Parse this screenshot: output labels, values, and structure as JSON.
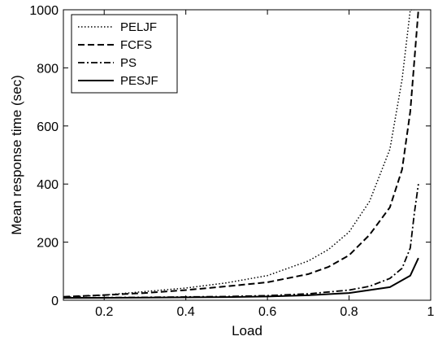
{
  "chart_data": {
    "type": "line",
    "xlabel": "Load",
    "ylabel": "Mean response time (sec)",
    "xlim": [
      0.1,
      1.0
    ],
    "ylim": [
      0,
      1000
    ],
    "xticks": [
      0.2,
      0.4,
      0.6,
      0.8,
      1
    ],
    "xtick_labels": [
      "0.2",
      "0.4",
      "0.6",
      "0.8",
      "1"
    ],
    "yticks": [
      0,
      200,
      400,
      600,
      800,
      1000
    ],
    "ytick_labels": [
      "0",
      "200",
      "400",
      "600",
      "800",
      "1000"
    ],
    "grid": false,
    "legend_position": "top-left",
    "series": [
      {
        "name": "PELJF",
        "style": "dotted",
        "x": [
          0.1,
          0.2,
          0.3,
          0.4,
          0.5,
          0.6,
          0.7,
          0.75,
          0.8,
          0.85,
          0.9,
          0.93,
          0.95,
          0.96
        ],
        "y": [
          10,
          18,
          30,
          42,
          60,
          85,
          135,
          175,
          235,
          340,
          520,
          760,
          1000,
          1000
        ]
      },
      {
        "name": "FCFS",
        "style": "dashed",
        "x": [
          0.1,
          0.2,
          0.3,
          0.4,
          0.5,
          0.6,
          0.7,
          0.75,
          0.8,
          0.85,
          0.9,
          0.93,
          0.95,
          0.97
        ],
        "y": [
          12,
          18,
          25,
          35,
          48,
          62,
          90,
          115,
          155,
          225,
          320,
          450,
          650,
          1000
        ]
      },
      {
        "name": "PS",
        "style": "dashdot",
        "x": [
          0.1,
          0.3,
          0.5,
          0.6,
          0.7,
          0.8,
          0.85,
          0.9,
          0.93,
          0.95,
          0.96,
          0.97
        ],
        "y": [
          8,
          10,
          13,
          16,
          22,
          35,
          48,
          75,
          110,
          180,
          300,
          400
        ]
      },
      {
        "name": "PESJF",
        "style": "solid",
        "x": [
          0.1,
          0.3,
          0.5,
          0.6,
          0.7,
          0.8,
          0.85,
          0.9,
          0.95,
          0.97
        ],
        "y": [
          8,
          9,
          11,
          13,
          17,
          25,
          35,
          45,
          85,
          145
        ]
      }
    ]
  }
}
